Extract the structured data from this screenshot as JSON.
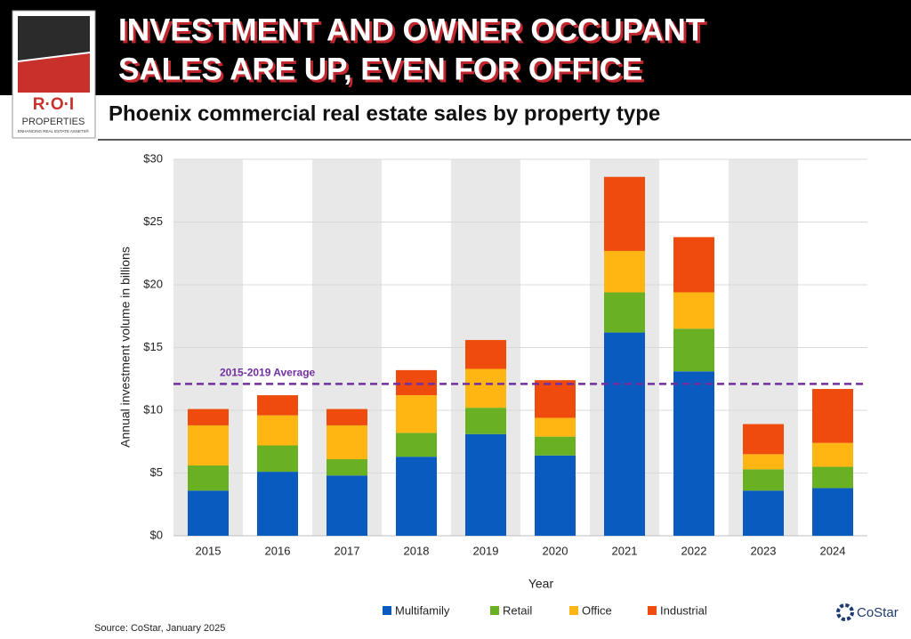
{
  "header": {
    "title_lines": [
      "INVESTMENT AND OWNER OCCUPANT",
      "SALES ARE UP, EVEN FOR OFFICE"
    ]
  },
  "logo": {
    "mark": "R·O·I",
    "name": "PROPERTIES",
    "tagline": "ENHANCING REAL ESTATE ASSETS®"
  },
  "branding": "CoStar",
  "chart_data": {
    "type": "stacked_bar",
    "title": "Phoenix commercial real estate sales by property type",
    "xlabel": "Year",
    "ylabel": "Annual investment volume in billions",
    "source": "Source: CoStar, January 2025",
    "categories": [
      "2015",
      "2016",
      "2017",
      "2018",
      "2019",
      "2020",
      "2021",
      "2022",
      "2023",
      "2024"
    ],
    "series": [
      {
        "name": "Multifamily",
        "color": "#0a5bbf",
        "values": [
          3.6,
          5.1,
          4.8,
          6.3,
          8.1,
          6.4,
          16.2,
          13.1,
          3.6,
          3.8
        ]
      },
      {
        "name": "Retail",
        "color": "#6ab023",
        "values": [
          2.0,
          2.1,
          1.3,
          1.9,
          2.1,
          1.5,
          3.2,
          3.4,
          1.7,
          1.7
        ]
      },
      {
        "name": "Office",
        "color": "#ffb612",
        "values": [
          3.2,
          2.4,
          2.7,
          3.0,
          3.1,
          1.5,
          3.3,
          2.9,
          1.2,
          1.9
        ]
      },
      {
        "name": "Industrial",
        "color": "#ee4b0c",
        "values": [
          1.3,
          1.6,
          1.3,
          2.0,
          2.3,
          3.0,
          5.9,
          4.4,
          2.4,
          4.3
        ]
      }
    ],
    "average": {
      "value": 12.1,
      "label": "2015-2019 Average",
      "color": "#7030a0"
    },
    "ylim": [
      0,
      30
    ],
    "yticks": [
      {
        "value": 0,
        "label": "$0"
      },
      {
        "value": 5,
        "label": "$5"
      },
      {
        "value": 10,
        "label": "$10"
      },
      {
        "value": 15,
        "label": "$15"
      },
      {
        "value": 20,
        "label": "$20"
      },
      {
        "value": 25,
        "label": "$25"
      },
      {
        "value": 30,
        "label": "$30"
      }
    ],
    "grid": true,
    "alternating_bands": true,
    "legend": "bottom"
  }
}
